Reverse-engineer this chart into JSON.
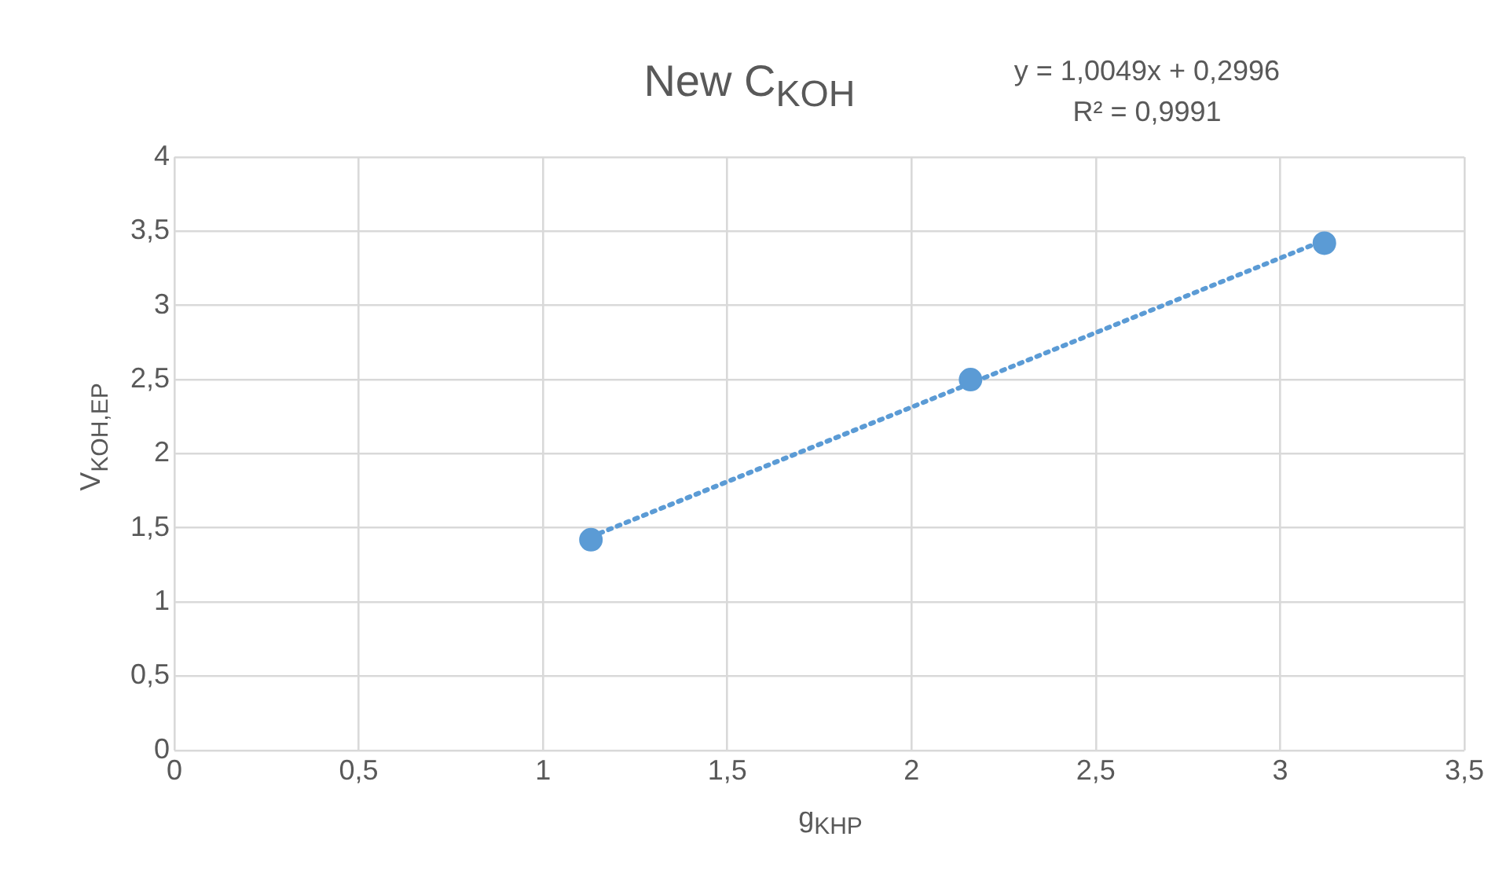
{
  "chart_data": {
    "type": "scatter",
    "title": "New C$_{KOH}$",
    "xlabel": "g$_{KHP}$",
    "ylabel": "V$_{KOH,EP}$",
    "annotations": [
      "y = 1,0049x + 0,2996",
      "R² = 0,9991"
    ],
    "series": [
      {
        "type": "scatter",
        "color": "#5b9bd5",
        "marker": "circle",
        "x": [
          1.13,
          2.16,
          3.12
        ],
        "values": [
          1.42,
          2.5,
          3.42
        ]
      },
      {
        "type": "line",
        "color": "#5b9bd5",
        "marker": "none",
        "line_style": "dotted",
        "x": [
          1.13,
          3.12
        ],
        "values": [
          1.44,
          3.44
        ]
      }
    ],
    "xlim": [
      0,
      3.5
    ],
    "xticks": [
      0,
      {
        "value": 0.5,
        "label": "0,5"
      },
      1,
      {
        "value": 1.5,
        "label": "1,5"
      },
      2,
      {
        "value": 2.5,
        "label": "2,5"
      },
      3,
      {
        "value": 3.5,
        "label": "3,5"
      }
    ],
    "ylim": [
      0,
      4
    ],
    "yticks": [
      0,
      {
        "value": 0.5,
        "label": "0,5"
      },
      1,
      {
        "value": 1.5,
        "label": "1,5"
      },
      2,
      {
        "value": 2.5,
        "label": "2,5"
      },
      3,
      {
        "value": 3.5,
        "label": "3,5"
      },
      4
    ],
    "grid": true,
    "legend": false
  }
}
